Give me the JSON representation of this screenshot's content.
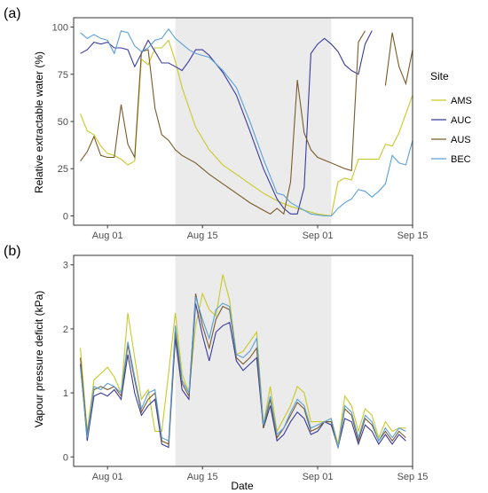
{
  "figure": {
    "x_title": "Date",
    "legend_title": "Site"
  },
  "colors": {
    "AMS": "#c9c928",
    "AUC": "#3b3b9a",
    "AUS": "#7a5a2a",
    "BEC": "#5aa0d8",
    "shade": "#ebebeb",
    "frame": "#333333"
  },
  "chart_data": [
    {
      "type": "line",
      "panel_label": "(a)",
      "ylabel": "Relative extractable water (%)",
      "xlabel": "Date",
      "x_type": "date",
      "xlim": [
        "2017-07-27",
        "2017-09-15"
      ],
      "ylim": [
        0,
        100
      ],
      "x_ticks": [
        {
          "date": "2017-08-01",
          "label": "Aug 01"
        },
        {
          "date": "2017-08-15",
          "label": "Aug 15"
        },
        {
          "date": "2017-09-01",
          "label": "Sep 01"
        },
        {
          "date": "2017-09-15",
          "label": "Sep 15"
        }
      ],
      "y_ticks": [
        0,
        25,
        50,
        75,
        100
      ],
      "shaded_period": [
        "2017-08-11",
        "2017-09-03"
      ],
      "grid": false,
      "legend_position": "right",
      "series": [
        {
          "name": "AMS",
          "points": [
            [
              "2017-07-28",
              54
            ],
            [
              "2017-07-29",
              45
            ],
            [
              "2017-07-30",
              43
            ],
            [
              "2017-07-31",
              37
            ],
            [
              "2017-08-01",
              33
            ],
            [
              "2017-08-02",
              32
            ],
            [
              "2017-08-03",
              30
            ],
            [
              "2017-08-04",
              27
            ],
            [
              "2017-08-05",
              29
            ],
            [
              "2017-08-06",
              83
            ],
            [
              "2017-08-07",
              80
            ],
            [
              "2017-08-08",
              89
            ],
            [
              "2017-08-09",
              89
            ],
            [
              "2017-08-10",
              93
            ],
            [
              "2017-08-11",
              82
            ],
            [
              "2017-08-12",
              68
            ],
            [
              "2017-08-14",
              47
            ],
            [
              "2017-08-16",
              35
            ],
            [
              "2017-08-18",
              27
            ],
            [
              "2017-08-20",
              22
            ],
            [
              "2017-08-22",
              17
            ],
            [
              "2017-08-24",
              12
            ],
            [
              "2017-08-26",
              8
            ],
            [
              "2017-08-28",
              5
            ],
            [
              "2017-08-30",
              3
            ],
            [
              "2017-09-01",
              1
            ],
            [
              "2017-09-03",
              0
            ],
            [
              "2017-09-04",
              18
            ],
            [
              "2017-09-05",
              20
            ],
            [
              "2017-09-06",
              19
            ],
            [
              "2017-09-07",
              30
            ],
            [
              "2017-09-08",
              30
            ],
            [
              "2017-09-09",
              30
            ],
            [
              "2017-09-10",
              30
            ],
            [
              "2017-09-11",
              38
            ],
            [
              "2017-09-12",
              37
            ],
            [
              "2017-09-13",
              44
            ],
            [
              "2017-09-15",
              64
            ]
          ]
        },
        {
          "name": "AUC",
          "points": [
            [
              "2017-07-28",
              86
            ],
            [
              "2017-07-29",
              88
            ],
            [
              "2017-07-30",
              92
            ],
            [
              "2017-07-31",
              91
            ],
            [
              "2017-08-01",
              92
            ],
            [
              "2017-08-02",
              89
            ],
            [
              "2017-08-03",
              89
            ],
            [
              "2017-08-04",
              88
            ],
            [
              "2017-08-05",
              79
            ],
            [
              "2017-08-06",
              86
            ],
            [
              "2017-08-07",
              93
            ],
            [
              "2017-08-08",
              87
            ],
            [
              "2017-08-09",
              81
            ],
            [
              "2017-08-10",
              81
            ],
            [
              "2017-08-11",
              79
            ],
            [
              "2017-08-12",
              77
            ],
            [
              "2017-08-13",
              82
            ],
            [
              "2017-08-14",
              88
            ],
            [
              "2017-08-15",
              88
            ],
            [
              "2017-08-16",
              85
            ],
            [
              "2017-08-18",
              76
            ],
            [
              "2017-08-20",
              64
            ],
            [
              "2017-08-22",
              45
            ],
            [
              "2017-08-24",
              25
            ],
            [
              "2017-08-26",
              9
            ],
            [
              "2017-08-27",
              4
            ],
            [
              "2017-08-28",
              1
            ],
            [
              "2017-08-29",
              1
            ],
            [
              "2017-08-30",
              15
            ],
            [
              "2017-08-31",
              86
            ],
            [
              "2017-09-01",
              91
            ],
            [
              "2017-09-02",
              94
            ],
            [
              "2017-09-03",
              91
            ],
            [
              "2017-09-04",
              87
            ],
            [
              "2017-09-05",
              80
            ],
            [
              "2017-09-06",
              77
            ],
            [
              "2017-09-07",
              75
            ],
            [
              "2017-09-08",
              91
            ],
            [
              "2017-09-09",
              98
            ]
          ]
        },
        {
          "name": "AUS",
          "points": [
            [
              "2017-07-28",
              29
            ],
            [
              "2017-07-29",
              34
            ],
            [
              "2017-07-30",
              42
            ],
            [
              "2017-07-31",
              32
            ],
            [
              "2017-08-01",
              31
            ],
            [
              "2017-08-02",
              31
            ],
            [
              "2017-08-03",
              59
            ],
            [
              "2017-08-04",
              38
            ],
            [
              "2017-08-05",
              31
            ],
            [
              "2017-08-06",
              87
            ],
            [
              "2017-08-07",
              88
            ],
            [
              "2017-08-08",
              57
            ],
            [
              "2017-08-09",
              43
            ],
            [
              "2017-08-10",
              40
            ],
            [
              "2017-08-11",
              35
            ],
            [
              "2017-08-12",
              32
            ],
            [
              "2017-08-14",
              28
            ],
            [
              "2017-08-16",
              22
            ],
            [
              "2017-08-18",
              17
            ],
            [
              "2017-08-20",
              12
            ],
            [
              "2017-08-22",
              7
            ],
            [
              "2017-08-24",
              3
            ],
            [
              "2017-08-25",
              1
            ],
            [
              "2017-08-26",
              4
            ],
            [
              "2017-08-27",
              1
            ],
            [
              "2017-08-28",
              18
            ],
            [
              "2017-08-29",
              72
            ],
            [
              "2017-08-30",
              44
            ],
            [
              "2017-08-31",
              35
            ],
            [
              "2017-09-01",
              31
            ],
            [
              "2017-09-03",
              28
            ],
            [
              "2017-09-05",
              25
            ],
            [
              "2017-09-06",
              24
            ],
            [
              "2017-09-07",
              92
            ],
            [
              "2017-09-08",
              98
            ],
            [
              "2017-09-10",
              null
            ],
            [
              "2017-09-11",
              69
            ],
            [
              "2017-09-12",
              97
            ],
            [
              "2017-09-13",
              79
            ],
            [
              "2017-09-14",
              70
            ],
            [
              "2017-09-15",
              88
            ]
          ]
        },
        {
          "name": "BEC",
          "points": [
            [
              "2017-07-28",
              97
            ],
            [
              "2017-07-29",
              94
            ],
            [
              "2017-07-30",
              96
            ],
            [
              "2017-07-31",
              94
            ],
            [
              "2017-08-01",
              93
            ],
            [
              "2017-08-02",
              86
            ],
            [
              "2017-08-03",
              98
            ],
            [
              "2017-08-04",
              97
            ],
            [
              "2017-08-05",
              90
            ],
            [
              "2017-08-06",
              87
            ],
            [
              "2017-08-07",
              89
            ],
            [
              "2017-08-08",
              93
            ],
            [
              "2017-08-09",
              94
            ],
            [
              "2017-08-10",
              99
            ],
            [
              "2017-08-11",
              94
            ],
            [
              "2017-08-12",
              91
            ],
            [
              "2017-08-13",
              88
            ],
            [
              "2017-08-14",
              86
            ],
            [
              "2017-08-15",
              85
            ],
            [
              "2017-08-16",
              84
            ],
            [
              "2017-08-18",
              77
            ],
            [
              "2017-08-20",
              68
            ],
            [
              "2017-08-22",
              50
            ],
            [
              "2017-08-24",
              30
            ],
            [
              "2017-08-26",
              12
            ],
            [
              "2017-08-27",
              11
            ],
            [
              "2017-08-28",
              7
            ],
            [
              "2017-08-29",
              5
            ],
            [
              "2017-08-30",
              3
            ],
            [
              "2017-08-31",
              1
            ],
            [
              "2017-09-02",
              0
            ],
            [
              "2017-09-03",
              0
            ],
            [
              "2017-09-04",
              4
            ],
            [
              "2017-09-05",
              7
            ],
            [
              "2017-09-06",
              9
            ],
            [
              "2017-09-07",
              14
            ],
            [
              "2017-09-08",
              13
            ],
            [
              "2017-09-09",
              10
            ],
            [
              "2017-09-10",
              13
            ],
            [
              "2017-09-11",
              17
            ],
            [
              "2017-09-12",
              32
            ],
            [
              "2017-09-13",
              28
            ],
            [
              "2017-09-14",
              27
            ],
            [
              "2017-09-15",
              40
            ]
          ]
        }
      ]
    },
    {
      "type": "line",
      "panel_label": "(b)",
      "ylabel": "Vapour pressure deficit (kPa)",
      "xlabel": "Date",
      "x_type": "date",
      "xlim": [
        "2017-07-27",
        "2017-09-15"
      ],
      "ylim": [
        0,
        3
      ],
      "x_ticks": [
        {
          "date": "2017-08-01",
          "label": "Aug 01"
        },
        {
          "date": "2017-08-15",
          "label": "Aug 15"
        },
        {
          "date": "2017-09-01",
          "label": "Sep 01"
        },
        {
          "date": "2017-09-15",
          "label": "Sep 15"
        }
      ],
      "y_ticks": [
        0,
        1,
        2,
        3
      ],
      "shaded_period": [
        "2017-08-11",
        "2017-09-03"
      ],
      "grid": false,
      "series": [
        {
          "name": "AMS",
          "values": [
            1.7,
            0.4,
            1.2,
            1.3,
            1.4,
            1.25,
            1.0,
            2.25,
            1.55,
            0.9,
            1.05,
            0.4,
            0.4,
            1.3,
            2.25,
            1.3,
            1.0,
            2.05,
            2.55,
            2.3,
            2.2,
            2.85,
            2.45,
            1.6,
            1.65,
            1.8,
            1.95,
            0.5,
            1.1,
            0.4,
            0.6,
            0.8,
            1.1,
            1.0,
            0.55,
            0.55,
            0.55,
            0.6,
            0.2,
            0.95,
            0.8,
            0.4,
            0.75,
            0.65,
            0.3,
            0.55,
            0.4,
            0.45,
            0.45
          ]
        },
        {
          "name": "AUC",
          "values": [
            1.45,
            0.25,
            0.95,
            1.0,
            0.95,
            1.05,
            0.9,
            1.6,
            1.0,
            0.65,
            0.8,
            0.9,
            0.2,
            0.15,
            1.85,
            1.05,
            0.9,
            2.4,
            1.9,
            1.5,
            1.95,
            2.05,
            2.1,
            1.5,
            1.35,
            1.45,
            1.55,
            0.45,
            0.8,
            0.25,
            0.35,
            0.55,
            0.7,
            0.6,
            0.35,
            0.4,
            0.55,
            0.5,
            0.15,
            0.6,
            0.55,
            0.2,
            0.5,
            0.4,
            0.2,
            0.35,
            0.2,
            0.35,
            0.25
          ]
        },
        {
          "name": "AUS",
          "values": [
            1.55,
            0.35,
            1.05,
            1.1,
            1.05,
            1.1,
            0.95,
            1.75,
            1.2,
            0.7,
            0.9,
            1.0,
            0.25,
            0.2,
            1.95,
            1.15,
            0.95,
            2.55,
            2.05,
            1.7,
            2.15,
            2.35,
            2.3,
            1.55,
            1.45,
            1.55,
            1.7,
            0.45,
            0.9,
            0.3,
            0.45,
            0.65,
            0.85,
            0.75,
            0.4,
            0.45,
            0.55,
            0.55,
            0.15,
            0.75,
            0.65,
            0.25,
            0.6,
            0.5,
            0.25,
            0.4,
            0.25,
            0.4,
            0.3
          ]
        },
        {
          "name": "BEC",
          "values": [
            1.4,
            0.3,
            1.1,
            1.05,
            1.15,
            1.1,
            1.0,
            1.8,
            1.25,
            0.75,
            1.0,
            1.05,
            0.3,
            0.25,
            2.05,
            1.2,
            1.0,
            2.5,
            2.15,
            1.85,
            2.3,
            2.4,
            2.35,
            1.6,
            1.55,
            1.65,
            1.85,
            0.5,
            0.95,
            0.35,
            0.45,
            0.7,
            0.9,
            0.8,
            0.45,
            0.5,
            0.55,
            0.6,
            0.15,
            0.8,
            0.7,
            0.3,
            0.65,
            0.55,
            0.25,
            0.45,
            0.3,
            0.45,
            0.4
          ]
        }
      ],
      "x_start": "2017-07-28"
    }
  ]
}
